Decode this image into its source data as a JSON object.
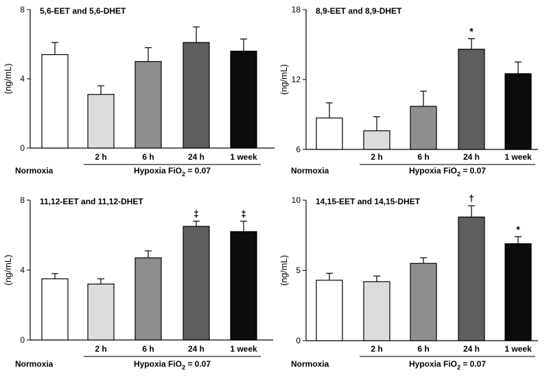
{
  "chart_data": [
    {
      "type": "bar",
      "title": "5,6-EET and 5,6-DHET",
      "ylabel": "(ng/mL)",
      "ylim": [
        0,
        8
      ],
      "yticks": [
        0,
        4,
        8
      ],
      "categories": [
        "Normoxia",
        "2 h",
        "6 h",
        "24 h",
        "1 week"
      ],
      "values": [
        5.4,
        3.1,
        5.0,
        6.1,
        5.6
      ],
      "errors": [
        0.7,
        0.5,
        0.8,
        0.9,
        0.7
      ],
      "annotations": [
        "",
        "",
        "",
        "",
        ""
      ],
      "group_label_prefix": "Hypoxia FiO",
      "group_label_sub": "2",
      "group_label_suffix": " = 0.07"
    },
    {
      "type": "bar",
      "title": "8,9-EET and 8,9-DHET",
      "ylabel": "(ng/mL)",
      "ylim": [
        6,
        18
      ],
      "yticks": [
        6,
        12,
        18
      ],
      "categories": [
        "Normoxia",
        "2 h",
        "6 h",
        "24 h",
        "1 week"
      ],
      "values": [
        8.7,
        7.6,
        9.7,
        14.6,
        12.5
      ],
      "errors": [
        1.3,
        1.2,
        1.3,
        0.9,
        1.0
      ],
      "annotations": [
        "",
        "",
        "",
        "*",
        ""
      ],
      "group_label_prefix": "Hypoxia FiO",
      "group_label_sub": "2",
      "group_label_suffix": " = 0.07"
    },
    {
      "type": "bar",
      "title": "11,12-EET and 11,12-DHET",
      "ylabel": "(ng/mL)",
      "ylim": [
        0,
        8
      ],
      "yticks": [
        0,
        4,
        8
      ],
      "categories": [
        "Normoxia",
        "2 h",
        "6 h",
        "24 h",
        "1 week"
      ],
      "values": [
        3.5,
        3.2,
        4.7,
        6.5,
        6.2
      ],
      "errors": [
        0.3,
        0.3,
        0.4,
        0.3,
        0.6
      ],
      "annotations": [
        "",
        "",
        "",
        "‡",
        "‡"
      ],
      "group_label_prefix": "Hypoxia FiO",
      "group_label_sub": "2",
      "group_label_suffix": " = 0.07"
    },
    {
      "type": "bar",
      "title": "14,15-EET and 14,15-DHET",
      "ylabel": "(ng/mL)",
      "ylim": [
        0,
        10
      ],
      "yticks": [
        0,
        5,
        10
      ],
      "categories": [
        "Normoxia",
        "2 h",
        "6 h",
        "24 h",
        "1 week"
      ],
      "values": [
        4.3,
        4.2,
        5.5,
        8.8,
        6.9
      ],
      "errors": [
        0.5,
        0.4,
        0.4,
        0.8,
        0.5
      ],
      "annotations": [
        "",
        "",
        "",
        "†",
        "*"
      ],
      "group_label_prefix": "Hypoxia FiO",
      "group_label_sub": "2",
      "group_label_suffix": " = 0.07"
    }
  ],
  "colors": {
    "normoxia": "#ffffff",
    "h2": "#dcdcdc",
    "h6": "#8e8e8e",
    "h24": "#5e5e5e",
    "week1": "#0c0c0c",
    "stroke": "#000000",
    "group_line": "#777777"
  }
}
